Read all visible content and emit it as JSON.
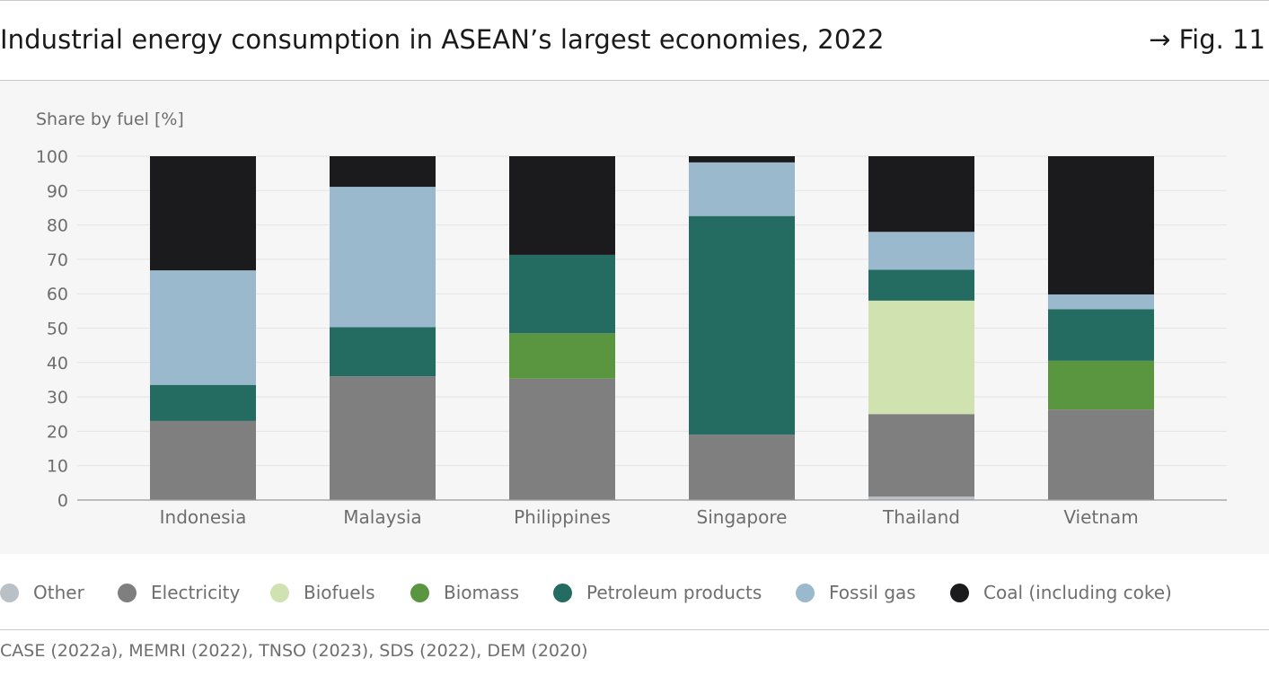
{
  "header": {
    "title": "Industrial energy consumption in ASEAN’s largest economies, 2022",
    "fig_ref": "→ Fig. 11"
  },
  "source": "CASE (2022a), MEMRI (2022), TNSO (2023), SDS (2022), DEM (2020)",
  "chart_data": {
    "type": "bar",
    "stacked": true,
    "ylabel": "Share by fuel  [%]",
    "ylim": [
      0,
      100
    ],
    "yticks": [
      0,
      10,
      20,
      30,
      40,
      50,
      60,
      70,
      80,
      90,
      100
    ],
    "grid": true,
    "legend_position": "bottom",
    "categories": [
      "Indonesia",
      "Malaysia",
      "Philippines",
      "Singapore",
      "Thailand",
      "Vietnam"
    ],
    "series": [
      {
        "name": "Other",
        "color": "#b9c0c6",
        "values": [
          0,
          0,
          0,
          0,
          1,
          0
        ]
      },
      {
        "name": "Electricity",
        "color": "#7f7f7f",
        "values": [
          23,
          36,
          35.3,
          19,
          24,
          26.3
        ]
      },
      {
        "name": "Biofuels",
        "color": "#d0e2b0",
        "values": [
          0,
          0,
          0,
          0,
          33,
          0
        ]
      },
      {
        "name": "Biomass",
        "color": "#5a9640",
        "values": [
          0,
          0,
          13.2,
          0,
          0,
          14.2
        ]
      },
      {
        "name": "Petroleum products",
        "color": "#246b61",
        "values": [
          10.5,
          14.3,
          22.8,
          63.6,
          9,
          15
        ]
      },
      {
        "name": "Fossil gas",
        "color": "#9bb9cc",
        "values": [
          33.3,
          40.8,
          0,
          15.6,
          11,
          4.3
        ]
      },
      {
        "name": "Coal (including coke)",
        "color": "#1b1b1d",
        "values": [
          33.2,
          8.9,
          28.7,
          1.8,
          22,
          40.2
        ]
      }
    ]
  }
}
